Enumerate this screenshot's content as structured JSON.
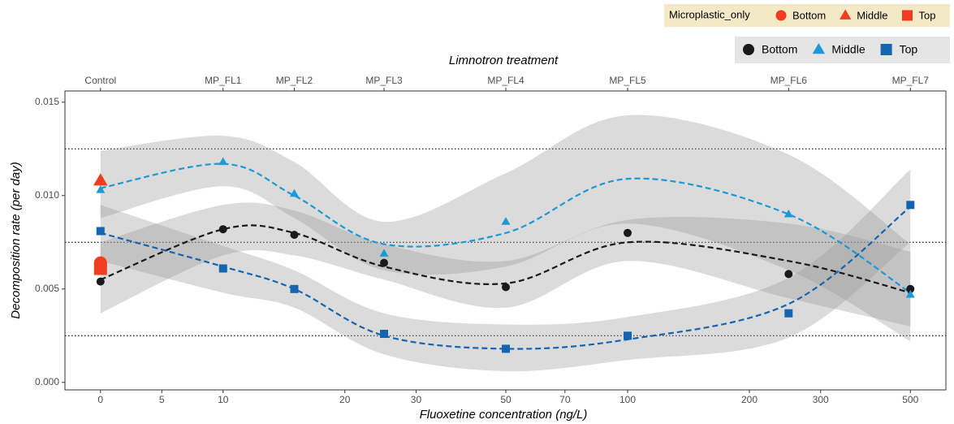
{
  "chart_data": {
    "type": "scatter-smooth",
    "title": "Limnotron treatment",
    "x_label": "Fluoxetine concentration (ng/L)",
    "y_label": "Decomposition rate (per day)",
    "xscale": "linear-log",
    "xlim": [
      -2.9,
      612
    ],
    "ylim": [
      -0.0004,
      0.0156
    ],
    "xticks": [
      0,
      5,
      10,
      20,
      30,
      50,
      70,
      100,
      200,
      300,
      500
    ],
    "yticks": [
      {
        "value": 0,
        "label": "0.000"
      },
      {
        "value": 0.005,
        "label": "0.005"
      },
      {
        "value": 0.01,
        "label": "0.010"
      },
      {
        "value": 0.015,
        "label": "0.015"
      }
    ],
    "top_ticks": [
      {
        "value": 0,
        "label": "Control"
      },
      {
        "value": 10,
        "label": "MP_FL1"
      },
      {
        "value": 15,
        "label": "MP_FL2"
      },
      {
        "value": 25,
        "label": "MP_FL3"
      },
      {
        "value": 50,
        "label": "MP_FL4"
      },
      {
        "value": 100,
        "label": "MP_FL5"
      },
      {
        "value": 250,
        "label": "MP_FL6"
      },
      {
        "value": 500,
        "label": "MP_FL7"
      }
    ],
    "hlines": [
      0.0025,
      0.0075,
      0.0125
    ],
    "x": [
      0,
      10,
      15,
      25,
      50,
      100,
      250,
      500
    ],
    "series": [
      {
        "name": "Bottom",
        "color": "#1a1a1a",
        "shape": "circle",
        "values": [
          0.0054,
          0.0082,
          0.0079,
          0.0064,
          0.0051,
          0.008,
          0.0058,
          0.005
        ],
        "fit": [
          0.0055,
          0.0082,
          0.008,
          0.0062,
          0.0053,
          0.0075,
          0.0065,
          0.0048
        ],
        "lower": [
          0.0037,
          0.0068,
          0.0068,
          0.0055,
          0.004,
          0.0065,
          0.0045,
          0.003
        ],
        "upper": [
          0.0075,
          0.0095,
          0.0092,
          0.0074,
          0.0065,
          0.0087,
          0.0085,
          0.007
        ]
      },
      {
        "name": "Middle",
        "color": "#1a9ad6",
        "shape": "triangle",
        "values": [
          0.0103,
          0.0118,
          0.0101,
          0.0069,
          0.0086,
          null,
          0.009,
          0.0047
        ],
        "fit": [
          0.0104,
          0.0117,
          0.01,
          0.0074,
          0.008,
          0.0109,
          0.009,
          0.0048
        ],
        "lower": [
          0.0088,
          0.0105,
          0.0088,
          0.006,
          0.0062,
          0.0085,
          0.006,
          0.0022
        ],
        "upper": [
          0.0124,
          0.0132,
          0.0118,
          0.0086,
          0.0112,
          0.0143,
          0.0122,
          0.0074
        ]
      },
      {
        "name": "Top",
        "color": "#1565b0",
        "shape": "square",
        "values": [
          0.0081,
          0.0061,
          0.005,
          0.0026,
          0.0018,
          0.0025,
          0.0037,
          0.0095
        ],
        "fit": [
          0.008,
          0.0062,
          0.005,
          0.0025,
          0.0018,
          0.0023,
          0.0042,
          0.0094
        ],
        "lower": [
          0.0065,
          0.0048,
          0.004,
          0.0015,
          0.0006,
          0.0012,
          0.0024,
          0.0075
        ],
        "upper": [
          0.0095,
          0.0073,
          0.006,
          0.0037,
          0.0031,
          0.0035,
          0.0056,
          0.0114
        ]
      }
    ],
    "microplastic_only": {
      "title": "Microplastic_only",
      "series": [
        {
          "name": "Bottom",
          "color": "#f03c1f",
          "shape": "circle",
          "x": [
            0
          ],
          "values": [
            0.0064
          ]
        },
        {
          "name": "Middle",
          "color": "#f03c1f",
          "shape": "triangle",
          "x": [
            0
          ],
          "values": [
            0.0108
          ]
        },
        {
          "name": "Top",
          "color": "#f03c1f",
          "shape": "square",
          "x": [
            0
          ],
          "values": [
            0.0061
          ]
        }
      ]
    }
  }
}
